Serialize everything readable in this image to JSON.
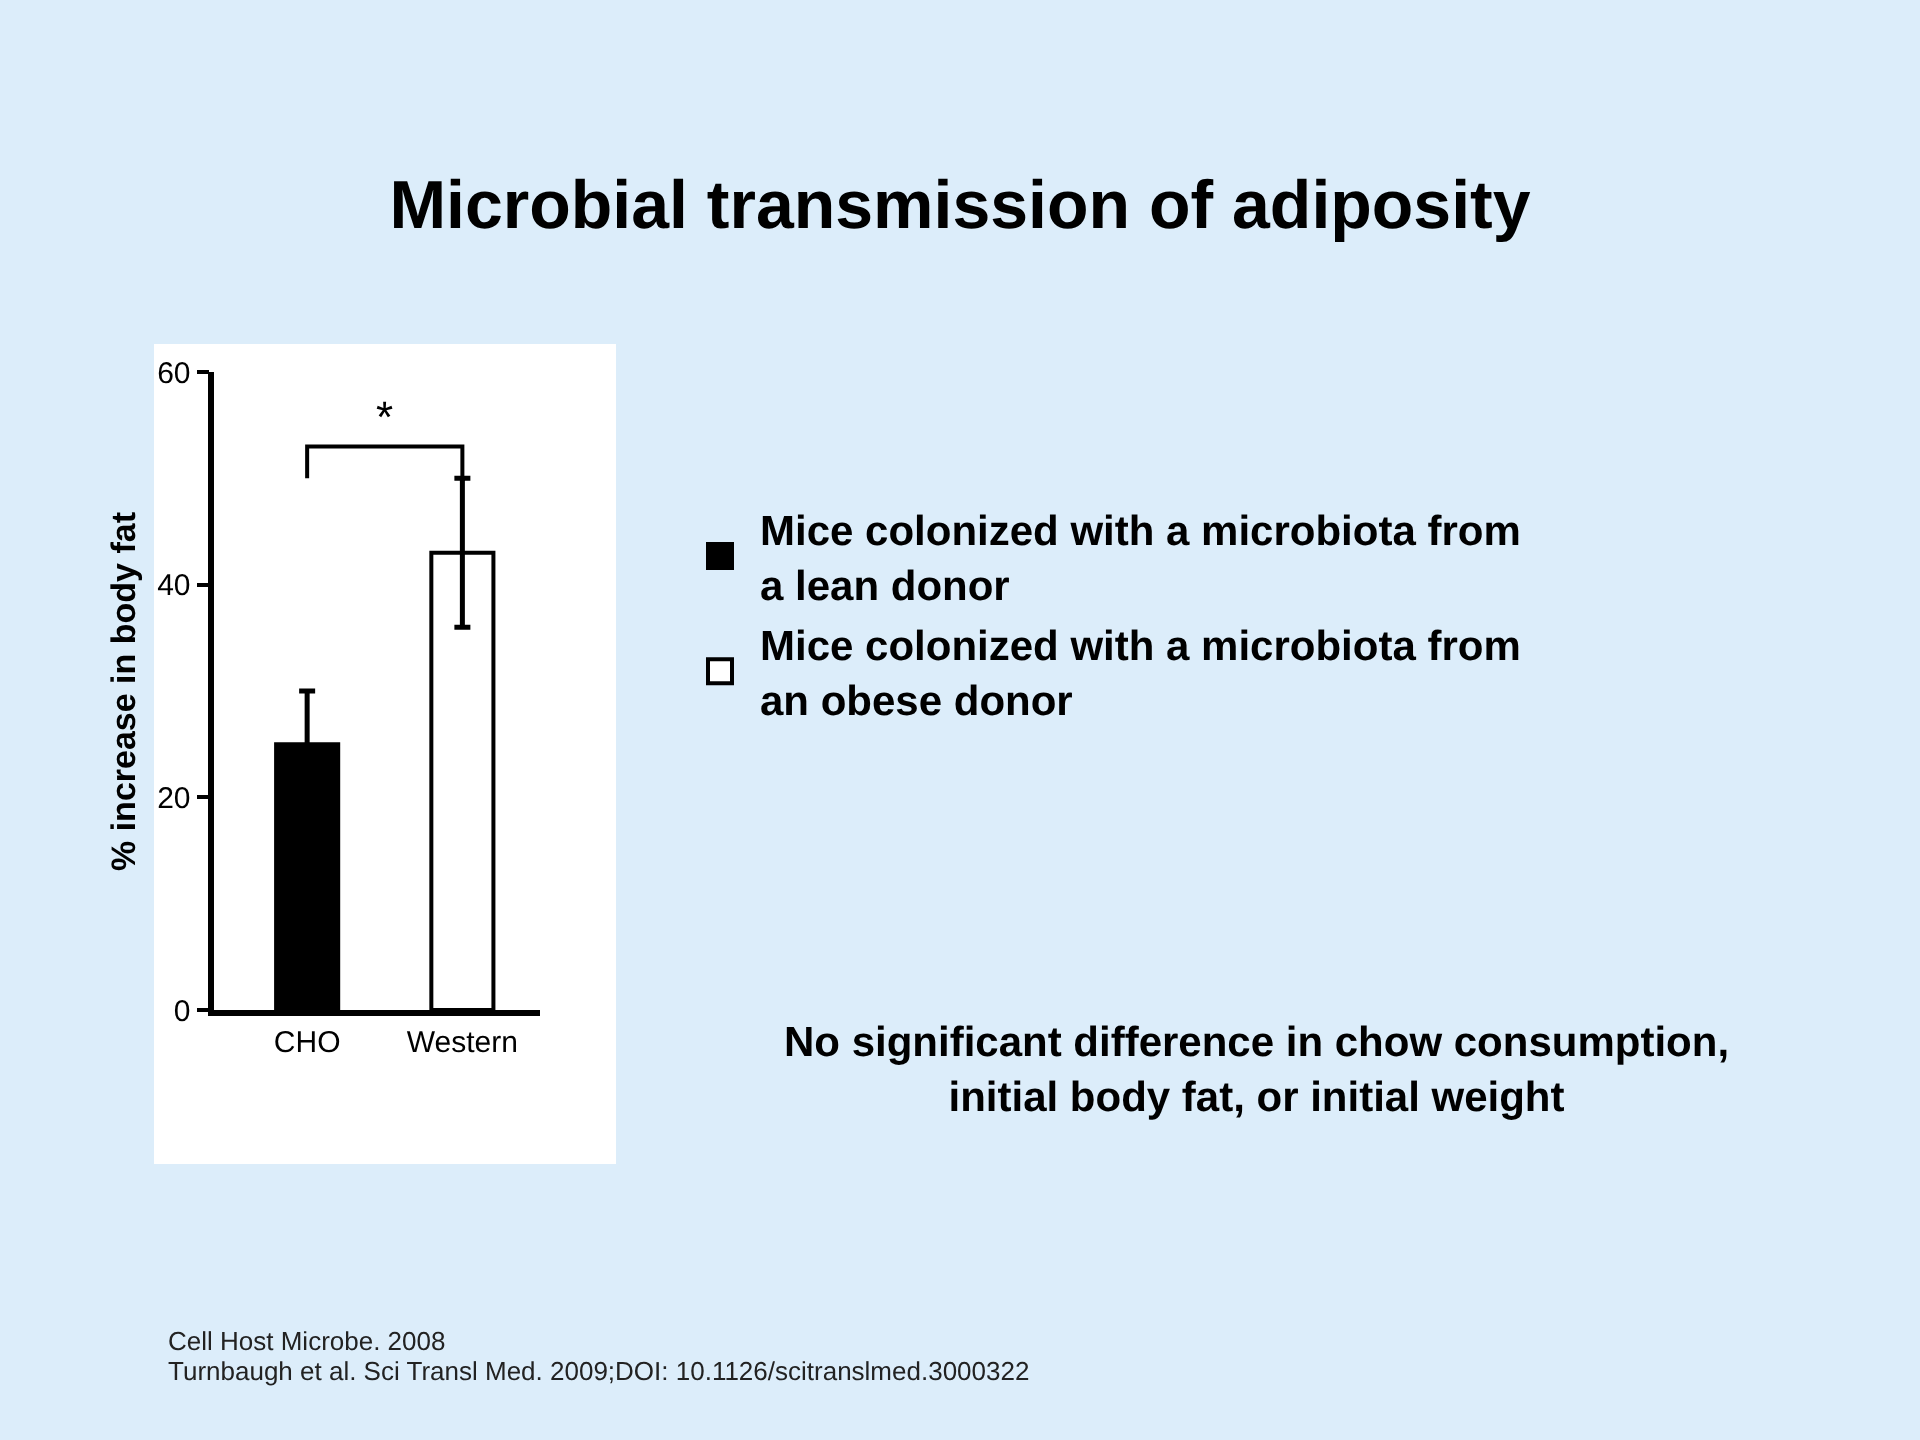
{
  "chart_data": {
    "type": "bar",
    "title": "Microbial transmission of adiposity",
    "ylabel": "% increase in body fat",
    "categories": [
      "CHO",
      "Western"
    ],
    "series": [
      {
        "name": "Mice colonized with a microbiota from a lean donor",
        "color": "#000000",
        "values": [
          25,
          null
        ],
        "errors": [
          5,
          null
        ]
      },
      {
        "name": "Mice colonized with a microbiota from an obese donor",
        "color": "#ffffff",
        "values": [
          null,
          43
        ],
        "errors": [
          null,
          7
        ]
      }
    ],
    "ylim": [
      0,
      60
    ],
    "yticks": [
      0,
      20,
      40,
      60
    ],
    "grid": false,
    "legend": "right",
    "annotations": [
      "*",
      "No significant difference in chow consumption, initial body fat, or initial weight",
      "Cell Host Microbe. 2008",
      "Turnbaugh et al. Sci Transl Med. 2009;DOI: 10.1126/scitranslmed.3000322"
    ]
  }
}
